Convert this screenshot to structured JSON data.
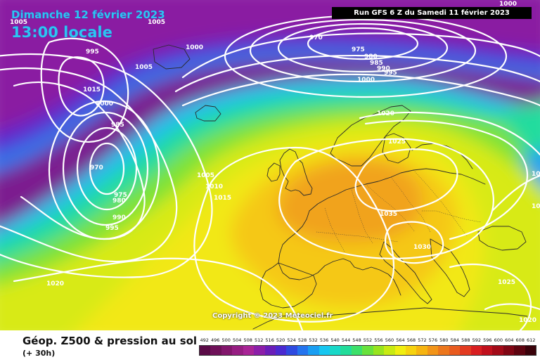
{
  "header": {
    "date": "Dimanche 12 février 2023",
    "time": "13:00 locale",
    "run": "Run GFS 6 Z du Samedi 11 février 2023"
  },
  "copyright": "Copyright © 2023 Meteociel.fr",
  "footer": {
    "title": "Géop. Z500 & pression au sol",
    "subtitle": "(+ 30h)"
  },
  "legend": {
    "labels": [
      "492",
      "496",
      "500",
      "504",
      "508",
      "512",
      "516",
      "520",
      "524",
      "528",
      "532",
      "536",
      "540",
      "544",
      "548",
      "552",
      "556",
      "560",
      "564",
      "568",
      "572",
      "576",
      "580",
      "584",
      "588",
      "592",
      "596",
      "600",
      "604",
      "608",
      "612"
    ],
    "colors": [
      "#5a0a46",
      "#6e1058",
      "#82166c",
      "#961d82",
      "#a82496",
      "#8c1ea8",
      "#6a1eb8",
      "#4a2ad0",
      "#2e4ae0",
      "#2474ee",
      "#1a9ef2",
      "#16c6f0",
      "#18d8c8",
      "#22dc9a",
      "#3ce06a",
      "#68e23c",
      "#98e41e",
      "#c8ea12",
      "#f0ee10",
      "#f6d20e",
      "#f6b410",
      "#f29418",
      "#ec761c",
      "#e85a1e",
      "#e23a20",
      "#d81e20",
      "#c0101c",
      "#a20a18",
      "#800614",
      "#5e0410",
      "#3a020a"
    ]
  },
  "isobar_labels": [
    "1005",
    "1005",
    "995",
    "1000",
    "970",
    "975",
    "980",
    "985",
    "990",
    "995",
    "1000",
    "1005",
    "1015",
    "1000",
    "985",
    "970",
    "975",
    "980",
    "990",
    "995",
    "1005",
    "1010",
    "1015",
    "1020",
    "1020",
    "1025",
    "1035",
    "1030",
    "1025",
    "1020",
    "1000",
    "1005",
    "1015"
  ]
}
